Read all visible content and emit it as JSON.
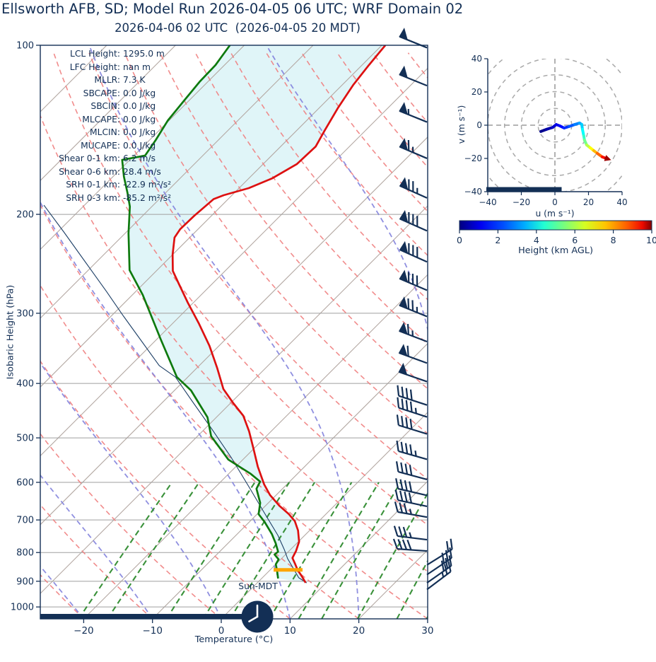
{
  "header": {
    "title": "Ellsworth AFB, SD; Model Run 2026-04-05 06 UTC; WRF Domain 02",
    "subtitle": "2026-04-06 02 UTC  (2026-04-05 20 MDT)"
  },
  "colors": {
    "navy": "#132f55",
    "temp_curve": "#dd1111",
    "dewpoint_curve": "#0e7a0e",
    "parcel_curve": "#1d3f66",
    "dry_adiabat": "#f08080",
    "moist_adiabat": "#8383dd",
    "mixing_line": "#2f8b2f",
    "isotherm": "#b3a8a2",
    "pressure_gridline": "#9f9f9f",
    "fill_between": "#d8f2f6",
    "lcl_marker": "#ffa500",
    "hodo_ring": "#a9a9a9"
  },
  "skewt": {
    "xlabel": "Temperature (°C)",
    "ylabel": "Isobaric Height (hPa)",
    "temp_ticks": [
      -20,
      -10,
      0,
      10,
      20,
      30
    ],
    "pressure_ticks": [
      100,
      200,
      300,
      400,
      500,
      600,
      700,
      800,
      900,
      1000
    ],
    "sun_label": "Sun-MDT",
    "clock_hour": 20,
    "annotations": [
      {
        "label": "LCL Height:",
        "value": "1295.0 m"
      },
      {
        "label": "LFC Height:",
        "value": "nan m"
      },
      {
        "label": "MLLR:",
        "value": "7.3 K"
      },
      {
        "label": "SBCAPE:",
        "value": "0.0 J/kg"
      },
      {
        "label": "SBCIN:",
        "value": "0.0 J/kg"
      },
      {
        "label": "MLCAPE:",
        "value": "0.0 J/kg"
      },
      {
        "label": "MLCIN:",
        "value": "0.0 J/kg"
      },
      {
        "label": "MUCAPE:",
        "value": "0.0 J/kg"
      },
      {
        "label": "Shear 0-1 km:",
        "value": "6.2 m/s"
      },
      {
        "label": "Shear 0-6 km:",
        "value": "28.4 m/s"
      },
      {
        "label": "SRH 0-1 km:",
        "value": "-22.9 m²/s²"
      },
      {
        "label": "SRH 0-3 km:",
        "value": "-85.2 m²/s²"
      }
    ]
  },
  "chart_data": {
    "type": "skewt-logp sounding with hodograph inset",
    "skewt": {
      "pressure_range_hPa": [
        100,
        1050
      ],
      "temp_axis_range_C": [
        -26.3,
        30
      ],
      "temperature_profile": [
        [
          905.3,
          7.0
        ],
        [
          884.5,
          5.7
        ],
        [
          859.4,
          4.0
        ],
        [
          837.3,
          2.7
        ],
        [
          818.0,
          1.5
        ],
        [
          794.8,
          1.0
        ],
        [
          765.3,
          0.1
        ],
        [
          730.5,
          -1.7
        ],
        [
          703.5,
          -3.5
        ],
        [
          683.4,
          -5.4
        ],
        [
          660.3,
          -8.0
        ],
        [
          632.1,
          -10.9
        ],
        [
          605.1,
          -13.3
        ],
        [
          562.7,
          -16.8
        ],
        [
          522.0,
          -20.1
        ],
        [
          486.8,
          -23.2
        ],
        [
          456.8,
          -26.3
        ],
        [
          433.6,
          -29.6
        ],
        [
          409.2,
          -33.1
        ],
        [
          375.0,
          -37.1
        ],
        [
          342.8,
          -41.4
        ],
        [
          313.3,
          -46.1
        ],
        [
          287.3,
          -50.8
        ],
        [
          267.2,
          -54.6
        ],
        [
          252.2,
          -57.6
        ],
        [
          235.9,
          -60.0
        ],
        [
          220.0,
          -62.2
        ],
        [
          212.5,
          -62.6
        ],
        [
          201.1,
          -62.5
        ],
        [
          187.9,
          -62.1
        ],
        [
          184.9,
          -61.2
        ],
        [
          179.6,
          -58.6
        ],
        [
          172.5,
          -56.6
        ],
        [
          162.8,
          -55.1
        ],
        [
          151.5,
          -54.9
        ],
        [
          142.1,
          -55.9
        ],
        [
          129.1,
          -57.3
        ],
        [
          117.7,
          -58.4
        ],
        [
          108.5,
          -59.0
        ],
        [
          100.0,
          -59.5
        ]
      ],
      "dewpoint_profile": [
        [
          889.9,
          2.4
        ],
        [
          859.4,
          1.0
        ],
        [
          839.6,
          0.0
        ],
        [
          822.9,
          -0.3
        ],
        [
          806.5,
          -1.6
        ],
        [
          797.2,
          -1.5
        ],
        [
          769.8,
          -3.1
        ],
        [
          741.2,
          -5.0
        ],
        [
          705.5,
          -7.8
        ],
        [
          683.4,
          -9.8
        ],
        [
          652.6,
          -11.2
        ],
        [
          615.8,
          -13.8
        ],
        [
          598.1,
          -14.3
        ],
        [
          579.4,
          -16.8
        ],
        [
          564.4,
          -19.2
        ],
        [
          546.7,
          -22.1
        ],
        [
          496.7,
          -28.0
        ],
        [
          459.5,
          -31.3
        ],
        [
          411.6,
          -37.6
        ],
        [
          389.6,
          -41.6
        ],
        [
          334.0,
          -49.4
        ],
        [
          278.2,
          -58.5
        ],
        [
          251.4,
          -64.0
        ],
        [
          216.2,
          -69.5
        ],
        [
          193.7,
          -73.2
        ],
        [
          183.3,
          -75.5
        ],
        [
          171.4,
          -78.4
        ],
        [
          160.0,
          -81.1
        ],
        [
          157.2,
          -78.4
        ],
        [
          147.5,
          -79.1
        ],
        [
          136.0,
          -80.2
        ],
        [
          125.7,
          -80.7
        ],
        [
          115.9,
          -81.2
        ],
        [
          108.5,
          -81.3
        ],
        [
          100.0,
          -82.1
        ]
      ],
      "parcel_profile": [
        [
          906.0,
          7.2
        ],
        [
          887.3,
          5.3
        ],
        [
          820.3,
          0.9
        ],
        [
          790.5,
          -0.9
        ],
        [
          745.6,
          -3.9
        ],
        [
          675.6,
          -9.5
        ],
        [
          613.9,
          -14.9
        ],
        [
          541.9,
          -22.0
        ],
        [
          482.6,
          -28.9
        ],
        [
          429.9,
          -35.9
        ],
        [
          389.6,
          -41.8
        ],
        [
          371.9,
          -45.8
        ],
        [
          336.0,
          -52.0
        ],
        [
          303.6,
          -58.2
        ],
        [
          274.2,
          -64.3
        ],
        [
          242.8,
          -71.7
        ],
        [
          215.0,
          -79.1
        ],
        [
          192.6,
          -85.9
        ]
      ],
      "lcl_marker": {
        "pressure": 859,
        "t_start": 0.5,
        "t_end": 4.7
      },
      "surface_bar": {
        "pressure": 1030,
        "t_start": -26.3,
        "t_end": 2.9
      },
      "isotherms_C": {
        "from": -110,
        "to": 40,
        "step": 10
      },
      "dry_adiabats_C": {
        "from": -110,
        "to": 160,
        "step": 10
      },
      "moist_adiabats_C": {
        "from": -60,
        "to": 40,
        "step": 10
      },
      "mixing_ratio_g_kg": [
        0.7,
        1,
        2,
        3,
        4,
        6,
        8,
        10,
        14,
        20,
        26
      ],
      "wind_barbs": [
        {
          "p": 101,
          "dir": 292,
          "pennants": 1,
          "fulls": 0,
          "halves": 0
        },
        {
          "p": 118,
          "dir": 292,
          "pennants": 1,
          "fulls": 0,
          "halves": 0
        },
        {
          "p": 137,
          "dir": 292,
          "pennants": 1,
          "fulls": 0,
          "halves": 1
        },
        {
          "p": 159,
          "dir": 293,
          "pennants": 1,
          "fulls": 1,
          "halves": 1
        },
        {
          "p": 187,
          "dir": 294,
          "pennants": 1,
          "fulls": 2,
          "halves": 1
        },
        {
          "p": 214,
          "dir": 294,
          "pennants": 1,
          "fulls": 3,
          "halves": 0
        },
        {
          "p": 243,
          "dir": 294,
          "pennants": 1,
          "fulls": 3,
          "halves": 0
        },
        {
          "p": 273,
          "dir": 293,
          "pennants": 1,
          "fulls": 3,
          "halves": 0
        },
        {
          "p": 304,
          "dir": 292,
          "pennants": 1,
          "fulls": 2,
          "halves": 1
        },
        {
          "p": 337,
          "dir": 291,
          "pennants": 1,
          "fulls": 1,
          "halves": 1
        },
        {
          "p": 368,
          "dir": 290,
          "pennants": 1,
          "fulls": 1,
          "halves": 0
        },
        {
          "p": 397,
          "dir": 289,
          "pennants": 1,
          "fulls": 0,
          "halves": 0
        },
        {
          "p": 437,
          "dir": 288,
          "pennants": 0,
          "fulls": 4,
          "halves": 0
        },
        {
          "p": 459,
          "dir": 288,
          "pennants": 0,
          "fulls": 4,
          "halves": 1
        },
        {
          "p": 492,
          "dir": 287,
          "pennants": 0,
          "fulls": 4,
          "halves": 0
        },
        {
          "p": 546,
          "dir": 286,
          "pennants": 0,
          "fulls": 4,
          "halves": 1
        },
        {
          "p": 593,
          "dir": 285,
          "pennants": 0,
          "fulls": 4,
          "halves": 0
        },
        {
          "p": 633,
          "dir": 283,
          "pennants": 0,
          "fulls": 4,
          "halves": 0
        },
        {
          "p": 662,
          "dir": 282,
          "pennants": 0,
          "fulls": 4,
          "halves": 0
        },
        {
          "p": 692,
          "dir": 280,
          "pennants": 0,
          "fulls": 3,
          "halves": 1
        },
        {
          "p": 759,
          "dir": 277,
          "pennants": 0,
          "fulls": 3,
          "halves": 1
        },
        {
          "p": 795,
          "dir": 274,
          "pennants": 0,
          "fulls": 4,
          "halves": 0
        },
        {
          "p": 842,
          "dir": 58,
          "pennants": 0,
          "fulls": 2,
          "halves": 0
        },
        {
          "p": 876,
          "dir": 56,
          "pennants": 0,
          "fulls": 3,
          "halves": 0
        },
        {
          "p": 906,
          "dir": 55,
          "pennants": 0,
          "fulls": 3,
          "halves": 0
        },
        {
          "p": 931,
          "dir": 53,
          "pennants": 0,
          "fulls": 2,
          "halves": 1
        }
      ]
    },
    "hodograph": {
      "xlabel": "u (m s⁻¹)",
      "ylabel": "v (m s⁻¹)",
      "xlim": [
        -40,
        40
      ],
      "ylim": [
        -40,
        40
      ],
      "ticks": [
        -40,
        -20,
        0,
        20,
        40
      ],
      "ring_radii": [
        10,
        20,
        30,
        40,
        50
      ],
      "ground_bar": {
        "u_start": -41,
        "u_end": 4,
        "v": -38.5
      },
      "trace_u_v_heightkm": [
        [
          -8.4,
          -3.8,
          0.0
        ],
        [
          -5.0,
          -2.5,
          0.3
        ],
        [
          -1.3,
          -1.3,
          0.6
        ],
        [
          0.8,
          0.4,
          0.9
        ],
        [
          2.9,
          -0.4,
          1.2
        ],
        [
          5.5,
          -1.7,
          1.5
        ],
        [
          8.4,
          -0.8,
          1.9
        ],
        [
          11.8,
          0.4,
          2.3
        ],
        [
          14.7,
          1.3,
          2.7
        ],
        [
          16.0,
          0.4,
          3.1
        ],
        [
          16.4,
          -2.5,
          3.5
        ],
        [
          17.2,
          -6.4,
          4.0
        ],
        [
          17.6,
          -8.9,
          4.5
        ],
        [
          18.9,
          -11.9,
          5.2
        ],
        [
          21.0,
          -13.6,
          5.9
        ],
        [
          23.1,
          -15.3,
          6.6
        ],
        [
          25.2,
          -16.9,
          7.3
        ],
        [
          28.2,
          -19.1,
          8.2
        ],
        [
          30.3,
          -19.9,
          9.0
        ],
        [
          31.5,
          -20.3,
          9.8
        ]
      ]
    },
    "colorbar": {
      "label": "Height (km AGL)",
      "ticks": [
        0,
        2,
        4,
        6,
        8,
        10
      ],
      "range": [
        0,
        10
      ],
      "cmap": "jet"
    }
  }
}
